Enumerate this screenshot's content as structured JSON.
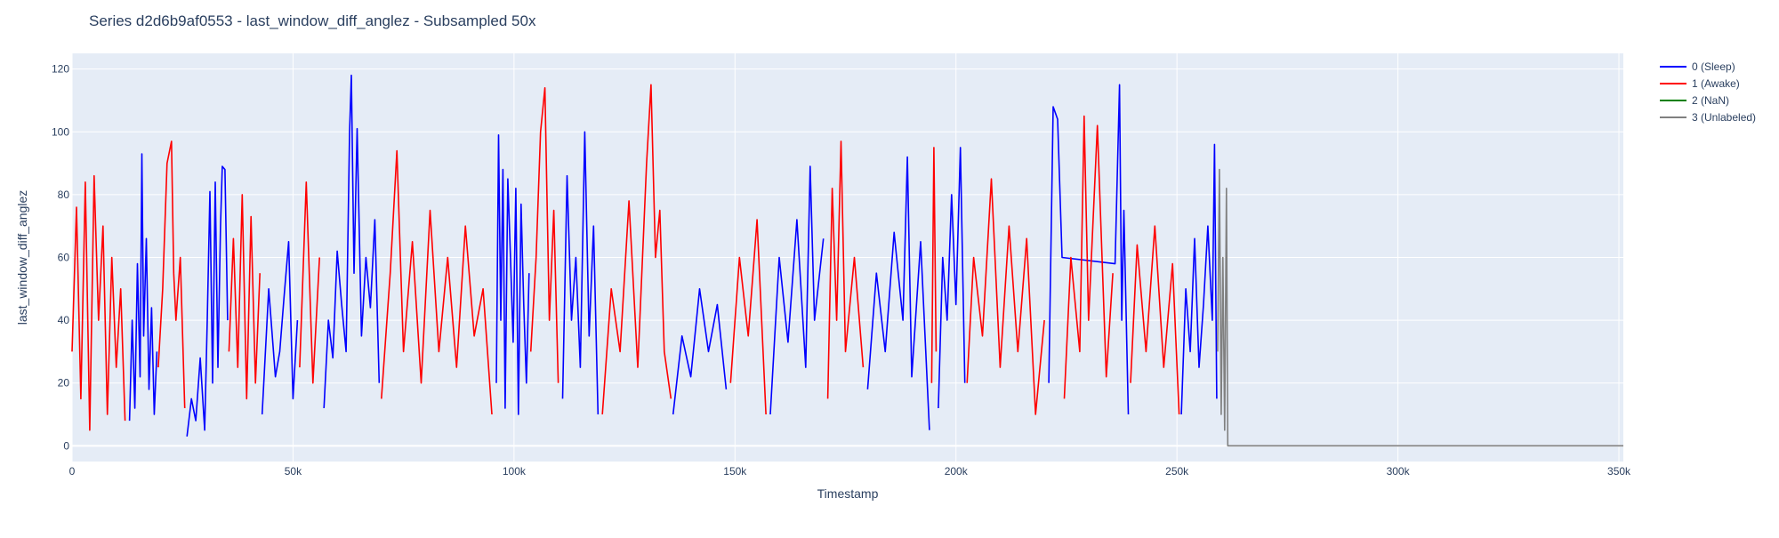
{
  "chart_data": {
    "type": "line",
    "title": "Series d2d6b9af0553 - last_window_diff_anglez - Subsampled 50x",
    "xlabel": "Timestamp",
    "ylabel": "last_window_diff_anglez",
    "xlim": [
      0,
      351000
    ],
    "ylim": [
      -5,
      125
    ],
    "x_ticks": [
      0,
      50000,
      100000,
      150000,
      200000,
      250000,
      300000,
      350000
    ],
    "x_tick_labels": [
      "0",
      "50k",
      "100k",
      "150k",
      "200k",
      "250k",
      "300k",
      "350k"
    ],
    "y_ticks": [
      0,
      20,
      40,
      60,
      80,
      100,
      120
    ],
    "y_tick_labels": [
      "0",
      "20",
      "40",
      "60",
      "80",
      "100",
      "120"
    ],
    "grid": true,
    "legend_position": "right",
    "background_color": "#e5ecf6",
    "series": [
      {
        "name": "0 (Sleep)",
        "color": "#0000ff",
        "segments": [
          {
            "x": [
              13000,
              13600,
              14200,
              14800,
              15400,
              15800,
              16200,
              16800,
              17400,
              18000,
              18600,
              19200
            ],
            "y": [
              8,
              40,
              12,
              58,
              22,
              93,
              35,
              66,
              18,
              44,
              10,
              30
            ]
          },
          {
            "x": [
              26000,
              27000,
              28000,
              29000,
              30000,
              30600,
              31200,
              31800,
              32400,
              33000,
              33600,
              34000,
              34600,
              35200
            ],
            "y": [
              3,
              15,
              8,
              28,
              5,
              40,
              81,
              20,
              84,
              25,
              70,
              89,
              88,
              40
            ]
          },
          {
            "x": [
              43000,
              44500,
              46000,
              47000,
              48000,
              49000,
              50000,
              51000
            ],
            "y": [
              10,
              50,
              22,
              30,
              48,
              65,
              15,
              40
            ]
          },
          {
            "x": [
              57000,
              58000,
              59000,
              60000,
              61000,
              62000,
              62800,
              63200,
              63800,
              64500,
              65500,
              66500,
              67500,
              68500,
              69500
            ],
            "y": [
              12,
              40,
              28,
              62,
              45,
              30,
              100,
              118,
              55,
              101,
              35,
              60,
              44,
              72,
              20
            ]
          },
          {
            "x": [
              96000,
              96500,
              97000,
              97500,
              98000,
              98600,
              99200,
              99800,
              100400,
              101000,
              101600,
              102200,
              102800,
              103400
            ],
            "y": [
              20,
              99,
              40,
              88,
              12,
              85,
              60,
              33,
              82,
              10,
              77,
              45,
              20,
              55
            ]
          },
          {
            "x": [
              111000,
              112000,
              113000,
              114000,
              115000,
              116000,
              117000,
              118000,
              119000
            ],
            "y": [
              15,
              86,
              40,
              60,
              25,
              100,
              35,
              70,
              10
            ]
          },
          {
            "x": [
              136000,
              138000,
              140000,
              142000,
              144000,
              146000,
              148000
            ],
            "y": [
              10,
              35,
              22,
              50,
              30,
              45,
              18
            ]
          },
          {
            "x": [
              158000,
              160000,
              162000,
              164000,
              166000,
              167000,
              168000,
              170000
            ],
            "y": [
              10,
              60,
              33,
              72,
              25,
              89,
              40,
              66
            ]
          },
          {
            "x": [
              180000,
              182000,
              184000,
              186000,
              188000,
              189000,
              190000,
              192000,
              194000
            ],
            "y": [
              18,
              55,
              30,
              68,
              40,
              92,
              22,
              65,
              5
            ]
          },
          {
            "x": [
              196000,
              197000,
              198000,
              199000,
              200000,
              201000,
              202000
            ],
            "y": [
              12,
              60,
              40,
              80,
              45,
              95,
              20
            ]
          },
          {
            "x": [
              221000,
              222000,
              223000,
              224000,
              236000,
              237000,
              237500,
              238000,
              239000
            ],
            "y": [
              20,
              108,
              104,
              60,
              58,
              115,
              40,
              75,
              10
            ]
          },
          {
            "x": [
              251000,
              252000,
              253000,
              254000,
              255000,
              256000,
              257000,
              258000,
              258500,
              259000
            ],
            "y": [
              10,
              50,
              30,
              66,
              25,
              45,
              70,
              40,
              96,
              15
            ]
          }
        ]
      },
      {
        "name": "1 (Awake)",
        "color": "#ff0000",
        "segments": [
          {
            "x": [
              0,
              1000,
              2000,
              3000,
              4000,
              5000,
              6000,
              7000,
              8000,
              9000,
              10000,
              11000,
              12000
            ],
            "y": [
              30,
              76,
              15,
              84,
              5,
              86,
              40,
              70,
              10,
              60,
              25,
              50,
              8
            ]
          },
          {
            "x": [
              19500,
              20500,
              21500,
              22500,
              23000,
              23500,
              24500,
              25500
            ],
            "y": [
              25,
              50,
              90,
              97,
              55,
              40,
              60,
              12
            ]
          },
          {
            "x": [
              35500,
              36500,
              37500,
              38500,
              39500,
              40500,
              41500,
              42500
            ],
            "y": [
              30,
              66,
              25,
              80,
              15,
              73,
              20,
              55
            ]
          },
          {
            "x": [
              51500,
              53000,
              54500,
              56000
            ],
            "y": [
              25,
              84,
              20,
              60
            ]
          },
          {
            "x": [
              70000,
              72000,
              73500,
              75000,
              77000,
              79000,
              81000,
              83000,
              85000,
              87000,
              89000,
              91000,
              93000,
              95000
            ],
            "y": [
              15,
              55,
              94,
              30,
              65,
              20,
              75,
              30,
              60,
              25,
              70,
              35,
              50,
              10
            ]
          },
          {
            "x": [
              103800,
              105000,
              106000,
              107000,
              108000,
              109000,
              110000
            ],
            "y": [
              30,
              60,
              100,
              114,
              40,
              75,
              20
            ]
          },
          {
            "x": [
              120000,
              122000,
              124000,
              126000,
              128000,
              130000,
              131000,
              132000,
              133000,
              134000,
              135500
            ],
            "y": [
              10,
              50,
              30,
              78,
              25,
              90,
              115,
              60,
              75,
              30,
              15
            ]
          },
          {
            "x": [
              149000,
              151000,
              153000,
              155000,
              157000
            ],
            "y": [
              20,
              60,
              35,
              72,
              10
            ]
          },
          {
            "x": [
              171000,
              172000,
              173000,
              174000,
              175000,
              177000,
              179000
            ],
            "y": [
              15,
              82,
              40,
              97,
              30,
              60,
              25
            ]
          },
          {
            "x": [
              194500,
              195000,
              195500
            ],
            "y": [
              20,
              95,
              30
            ]
          },
          {
            "x": [
              202500,
              204000,
              206000,
              208000,
              210000,
              212000,
              214000,
              216000,
              218000,
              220000
            ],
            "y": [
              20,
              60,
              35,
              85,
              25,
              70,
              30,
              66,
              10,
              40
            ]
          },
          {
            "x": [
              224500,
              226000,
              228000,
              229000,
              230000,
              232000,
              234000,
              235500
            ],
            "y": [
              15,
              60,
              30,
              105,
              40,
              102,
              22,
              55
            ]
          },
          {
            "x": [
              239500,
              241000,
              243000,
              245000,
              247000,
              249000,
              250500
            ],
            "y": [
              20,
              64,
              30,
              70,
              25,
              58,
              10
            ]
          }
        ]
      },
      {
        "name": "2 (NaN)",
        "color": "#008000",
        "segments": []
      },
      {
        "name": "3 (Unlabeled)",
        "color": "#808080",
        "segments": [
          {
            "x": [
              259200,
              259600,
              260000,
              260400,
              260800,
              261200,
              261500,
              262000,
              351000
            ],
            "y": [
              30,
              88,
              10,
              60,
              5,
              82,
              0,
              0,
              0
            ]
          }
        ]
      }
    ]
  }
}
